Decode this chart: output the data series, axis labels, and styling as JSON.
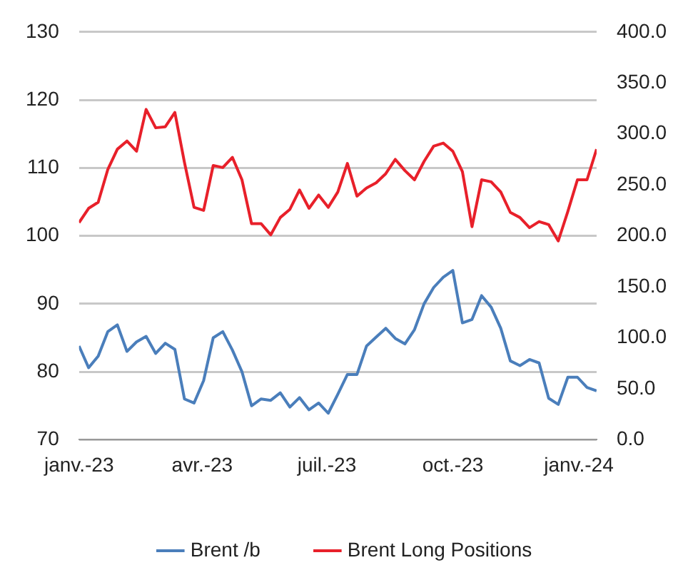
{
  "chart_data": {
    "type": "line",
    "x": [
      "2023-01-01",
      "2023-01-08",
      "2023-01-15",
      "2023-01-22",
      "2023-01-29",
      "2023-02-05",
      "2023-02-12",
      "2023-02-19",
      "2023-02-26",
      "2023-03-05",
      "2023-03-12",
      "2023-03-19",
      "2023-03-26",
      "2023-04-02",
      "2023-04-09",
      "2023-04-16",
      "2023-04-23",
      "2023-04-30",
      "2023-05-07",
      "2023-05-14",
      "2023-05-21",
      "2023-05-28",
      "2023-06-04",
      "2023-06-11",
      "2023-06-18",
      "2023-06-25",
      "2023-07-02",
      "2023-07-09",
      "2023-07-16",
      "2023-07-23",
      "2023-07-30",
      "2023-08-06",
      "2023-08-13",
      "2023-08-20",
      "2023-08-27",
      "2023-09-03",
      "2023-09-10",
      "2023-09-17",
      "2023-09-24",
      "2023-10-01",
      "2023-10-08",
      "2023-10-15",
      "2023-10-22",
      "2023-10-29",
      "2023-11-05",
      "2023-11-12",
      "2023-11-19",
      "2023-11-26",
      "2023-12-03",
      "2023-12-10",
      "2023-12-17",
      "2023-12-24",
      "2023-12-31",
      "2024-01-07",
      "2024-01-14"
    ],
    "series": [
      {
        "name": "Brent /b",
        "color": "#4a7ebb",
        "values": [
          83.8,
          80.6,
          82.3,
          85.9,
          86.9,
          83.0,
          84.4,
          85.2,
          82.7,
          84.2,
          83.3,
          76.0,
          75.4,
          78.7,
          85.0,
          85.9,
          83.2,
          80.0,
          75.0,
          76.0,
          75.8,
          76.9,
          74.8,
          76.2,
          74.4,
          75.4,
          73.9,
          76.7,
          79.6,
          79.6,
          83.8,
          85.1,
          86.4,
          84.9,
          84.1,
          86.2,
          90.0,
          92.4,
          93.9,
          94.9,
          87.2,
          87.7,
          91.2,
          89.5,
          86.4,
          81.6,
          80.9,
          81.8,
          81.3,
          76.1,
          75.2,
          79.2,
          79.2,
          77.7,
          77.2
        ]
      },
      {
        "name": "Brent Long Positions",
        "color": "#e8202a",
        "axis": "y2",
        "values": [
          213,
          227,
          233,
          265,
          285,
          293,
          283,
          324,
          306,
          307,
          321,
          272,
          228,
          225,
          269,
          267,
          277,
          255,
          212,
          212,
          201,
          218,
          226,
          245,
          227,
          240,
          228,
          243,
          271,
          239,
          247,
          252,
          261,
          275,
          264,
          255,
          273,
          288,
          291,
          283,
          263,
          209,
          255,
          253,
          243,
          223,
          218,
          208,
          214,
          211,
          195,
          224,
          255,
          255,
          285
        ]
      }
    ],
    "xlim": [
      "2023-01-01",
      "2024-01-14"
    ],
    "xticks": [
      {
        "value": "2023-01-01",
        "label": "janv.-23"
      },
      {
        "value": "2023-04-01",
        "label": "avr.-23"
      },
      {
        "value": "2023-07-01",
        "label": "juil.-23"
      },
      {
        "value": "2023-10-01",
        "label": "oct.-23"
      },
      {
        "value": "2024-01-01",
        "label": "janv.-24"
      }
    ],
    "ylim": [
      70,
      130
    ],
    "yticks": [
      70,
      80,
      90,
      100,
      110,
      120,
      130
    ],
    "y2lim": [
      0,
      400
    ],
    "y2ticks": [
      {
        "value": 0,
        "label": "0.0"
      },
      {
        "value": 50,
        "label": "50.0"
      },
      {
        "value": 100,
        "label": "100.0"
      },
      {
        "value": 150,
        "label": "150.0"
      },
      {
        "value": 200,
        "label": "200.0"
      },
      {
        "value": 250,
        "label": "250.0"
      },
      {
        "value": 300,
        "label": "300.0"
      },
      {
        "value": 350,
        "label": "350.0"
      },
      {
        "value": 400,
        "label": "400.0"
      }
    ],
    "grid": "y",
    "legend": "bottom",
    "marker": "none",
    "line_style": "solid"
  }
}
